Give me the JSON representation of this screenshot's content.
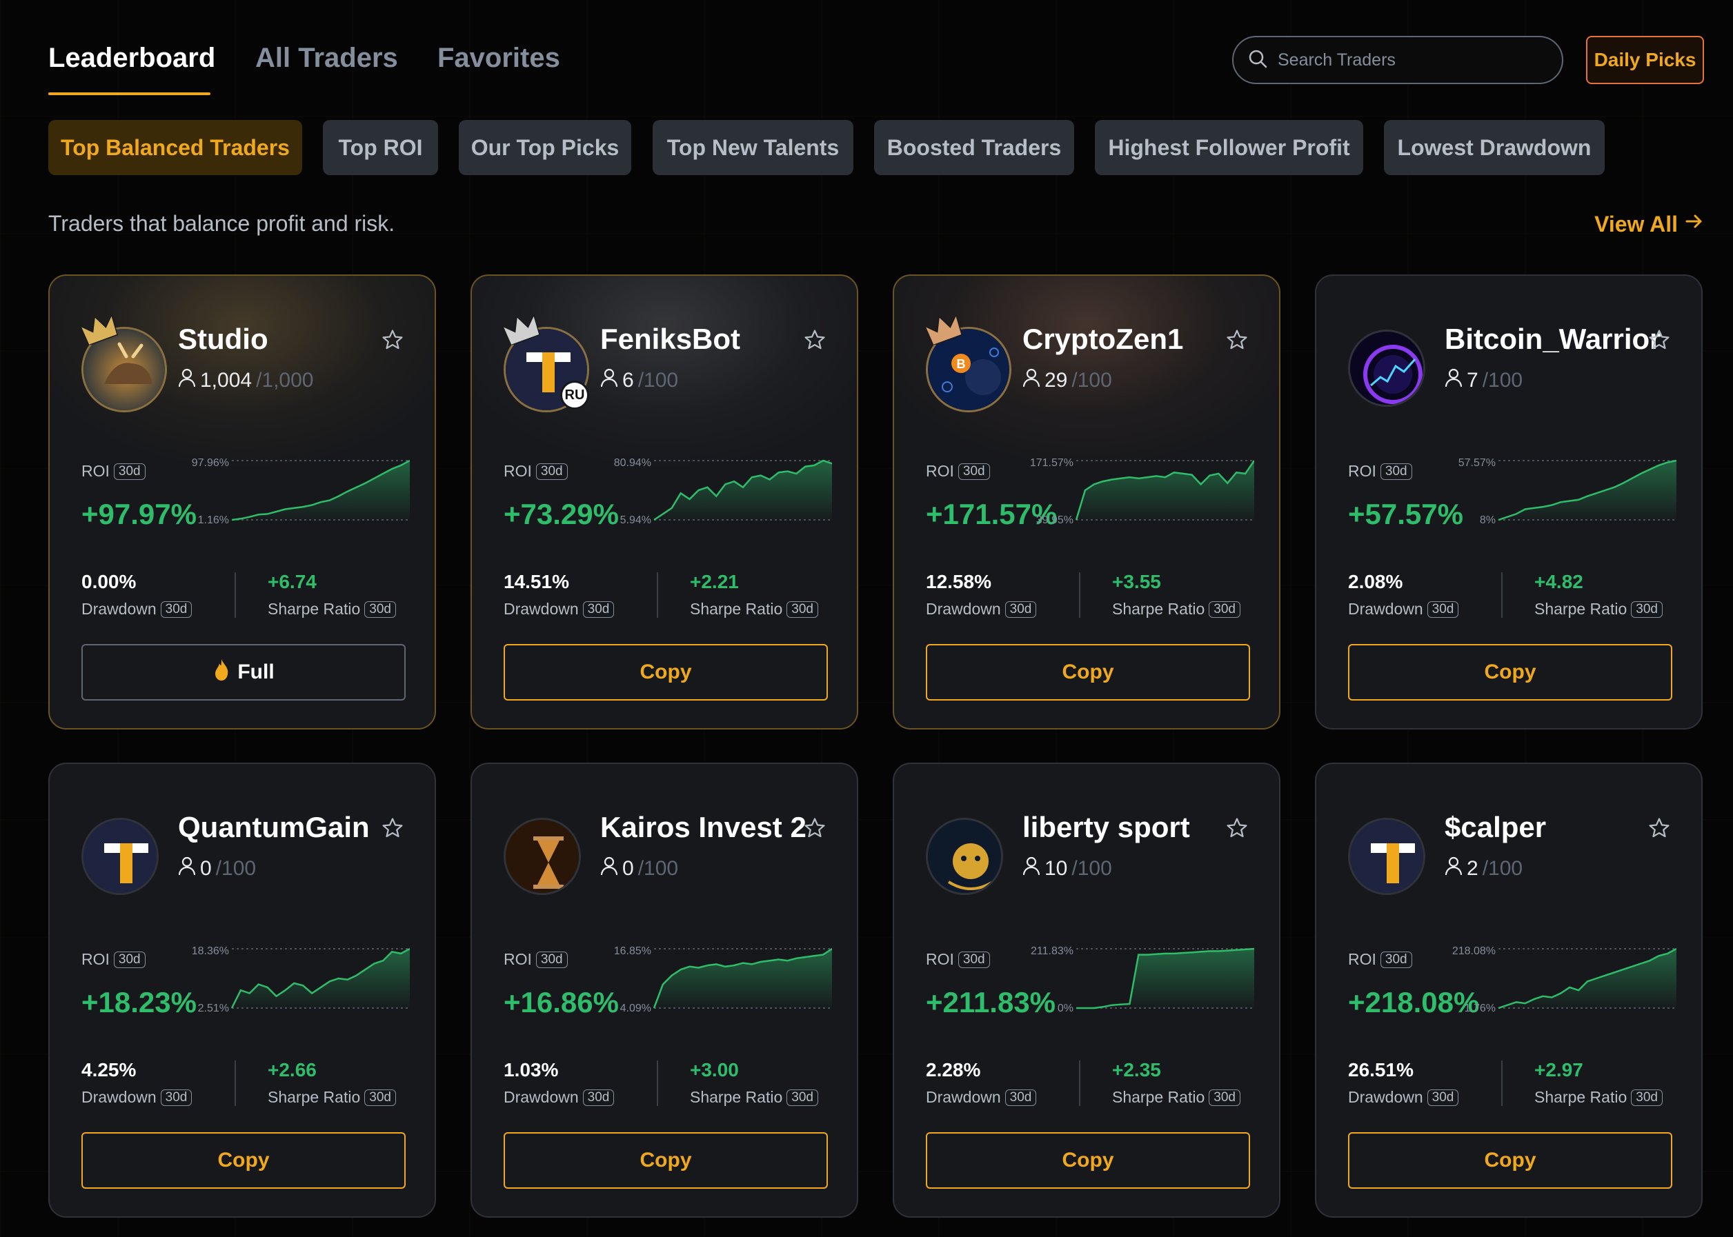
{
  "nav": {
    "tabs": [
      {
        "label": "Leaderboard",
        "active": true
      },
      {
        "label": "All Traders",
        "active": false
      },
      {
        "label": "Favorites",
        "active": false
      }
    ],
    "search_placeholder": "Search Traders",
    "daily_picks_label": "Daily Picks"
  },
  "chips": [
    {
      "label": "Top Balanced Traders",
      "active": true
    },
    {
      "label": "Top ROI",
      "active": false
    },
    {
      "label": "Our Top Picks",
      "active": false
    },
    {
      "label": "Top New Talents",
      "active": false
    },
    {
      "label": "Boosted Traders",
      "active": false
    },
    {
      "label": "Highest Follower Profit",
      "active": false
    },
    {
      "label": "Lowest Drawdown",
      "active": false
    }
  ],
  "subtitle": "Traders that balance profit and risk.",
  "view_all_label": "View All",
  "labels": {
    "roi": "ROI",
    "period": "30d",
    "drawdown": "Drawdown",
    "sharpe": "Sharpe Ratio"
  },
  "colors": {
    "accent": "#f0a81c",
    "positive": "#2ebd6b",
    "card_bg": "#17181c",
    "page_bg": "#050505"
  },
  "traders": [
    {
      "name": "Studio",
      "followers": "1,004",
      "capacity": "/1,000",
      "roi": "+97.97%",
      "roi_max": "97.96%",
      "roi_min": "1.16%",
      "drawdown": "0.00%",
      "sharpe": "+6.74",
      "button": "Full",
      "rank": "gold",
      "badge": "",
      "avatar_icon": "bull-avatar-icon"
    },
    {
      "name": "FeniksBot",
      "followers": "6",
      "capacity": "/100",
      "roi": "+73.29%",
      "roi_max": "80.94%",
      "roi_min": "5.94%",
      "drawdown": "14.51%",
      "sharpe": "+2.21",
      "button": "Copy",
      "rank": "silver",
      "badge": "RU",
      "avatar_icon": "t-logo-avatar-icon"
    },
    {
      "name": "CryptoZen1",
      "followers": "29",
      "capacity": "/100",
      "roi": "+171.57%",
      "roi_max": "171.57%",
      "roi_min": "39.95%",
      "drawdown": "12.58%",
      "sharpe": "+3.55",
      "button": "Copy",
      "rank": "bronze",
      "badge": "",
      "avatar_icon": "bitcoin-person-avatar-icon"
    },
    {
      "name": "Bitcoin_Warrior",
      "followers": "7",
      "capacity": "/100",
      "roi": "+57.57%",
      "roi_max": "57.57%",
      "roi_min": "8%",
      "drawdown": "2.08%",
      "sharpe": "+4.82",
      "button": "Copy",
      "rank": "",
      "badge": "",
      "avatar_icon": "neon-chart-avatar-icon"
    },
    {
      "name": "QuantumGain",
      "followers": "0",
      "capacity": "/100",
      "roi": "+18.23%",
      "roi_max": "18.36%",
      "roi_min": "2.51%",
      "drawdown": "4.25%",
      "sharpe": "+2.66",
      "button": "Copy",
      "rank": "",
      "badge": "",
      "avatar_icon": "t-logo-avatar-icon"
    },
    {
      "name": "Kairos Invest 2",
      "followers": "0",
      "capacity": "/100",
      "roi": "+16.86%",
      "roi_max": "16.85%",
      "roi_min": "4.09%",
      "drawdown": "1.03%",
      "sharpe": "+3.00",
      "button": "Copy",
      "rank": "",
      "badge": "",
      "avatar_icon": "hourglass-avatar-icon"
    },
    {
      "name": "liberty sport",
      "followers": "10",
      "capacity": "/100",
      "roi": "+211.83%",
      "roi_max": "211.83%",
      "roi_min": "0%",
      "drawdown": "2.28%",
      "sharpe": "+2.35",
      "button": "Copy",
      "rank": "",
      "badge": "",
      "avatar_icon": "hamster-crest-avatar-icon"
    },
    {
      "name": "$calper",
      "followers": "2",
      "capacity": "/100",
      "roi": "+218.08%",
      "roi_max": "218.08%",
      "roi_min": "1.76%",
      "drawdown": "26.51%",
      "sharpe": "+2.97",
      "button": "Copy",
      "rank": "",
      "badge": "",
      "avatar_icon": "t-logo-avatar-icon"
    }
  ]
}
